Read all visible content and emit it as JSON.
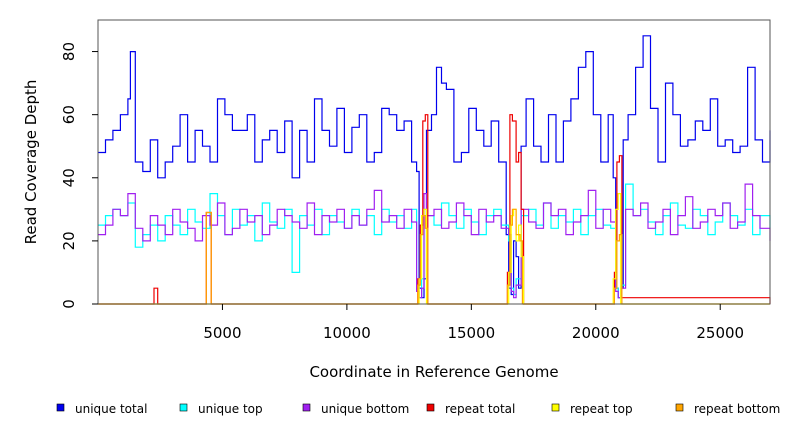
{
  "chart_data": {
    "type": "line",
    "title": "",
    "xlabel": "Coordinate in Reference Genome",
    "ylabel": "Read Coverage Depth",
    "xlim": [
      0,
      27000
    ],
    "ylim": [
      0,
      90
    ],
    "x_ticks": [
      5000,
      10000,
      15000,
      20000,
      25000
    ],
    "y_ticks": [
      0,
      20,
      40,
      60,
      80
    ],
    "grid": false,
    "legend_position": "bottom",
    "series": [
      {
        "name": "unique total",
        "color": "#0000ee",
        "x": [
          0,
          300,
          600,
          900,
          1200,
          1300,
          1500,
          1800,
          2100,
          2400,
          2700,
          3000,
          3300,
          3600,
          3900,
          4200,
          4500,
          4800,
          5100,
          5400,
          5700,
          6000,
          6300,
          6600,
          6900,
          7200,
          7500,
          7800,
          8100,
          8400,
          8700,
          9000,
          9300,
          9600,
          9900,
          10200,
          10500,
          10800,
          11100,
          11400,
          11700,
          12000,
          12300,
          12600,
          12800,
          12900,
          13000,
          13100,
          13200,
          13400,
          13600,
          13800,
          14000,
          14300,
          14600,
          14900,
          15200,
          15500,
          15800,
          16100,
          16400,
          16500,
          16600,
          16700,
          16800,
          16900,
          17000,
          17200,
          17500,
          17800,
          18100,
          18400,
          18700,
          19000,
          19300,
          19600,
          19900,
          20200,
          20500,
          20700,
          20800,
          20900,
          21000,
          21100,
          21300,
          21600,
          21900,
          22200,
          22500,
          22800,
          23100,
          23400,
          23700,
          24000,
          24300,
          24600,
          24900,
          25200,
          25500,
          25800,
          26100,
          26400,
          26700,
          27000
        ],
        "values": [
          48,
          52,
          55,
          60,
          65,
          80,
          45,
          42,
          52,
          40,
          45,
          50,
          60,
          45,
          55,
          50,
          45,
          65,
          60,
          55,
          55,
          60,
          45,
          52,
          55,
          48,
          58,
          40,
          55,
          45,
          65,
          55,
          50,
          62,
          48,
          56,
          60,
          45,
          48,
          62,
          60,
          55,
          58,
          45,
          42,
          5,
          2,
          8,
          55,
          60,
          75,
          70,
          68,
          45,
          48,
          62,
          55,
          50,
          58,
          45,
          22,
          5,
          3,
          20,
          15,
          5,
          50,
          65,
          50,
          45,
          60,
          45,
          58,
          65,
          75,
          80,
          60,
          45,
          60,
          40,
          5,
          2,
          5,
          52,
          60,
          75,
          85,
          62,
          45,
          70,
          60,
          50,
          52,
          58,
          55,
          65,
          50,
          52,
          48,
          50,
          75,
          52,
          45,
          55
        ]
      },
      {
        "name": "unique top",
        "color": "#00ffff",
        "x": [
          0,
          300,
          600,
          900,
          1200,
          1500,
          1800,
          2100,
          2400,
          2700,
          3000,
          3300,
          3600,
          3900,
          4200,
          4500,
          4800,
          5100,
          5400,
          5700,
          6000,
          6300,
          6600,
          6900,
          7200,
          7500,
          7800,
          8100,
          8400,
          8700,
          9000,
          9300,
          9600,
          9900,
          10200,
          10500,
          10800,
          11100,
          11400,
          11700,
          12000,
          12300,
          12600,
          12800,
          12900,
          13000,
          13100,
          13200,
          13500,
          13800,
          14100,
          14400,
          14700,
          15000,
          15300,
          15600,
          15900,
          16200,
          16500,
          16600,
          16700,
          16800,
          17000,
          17300,
          17600,
          17900,
          18200,
          18500,
          18800,
          19100,
          19400,
          19700,
          20000,
          20300,
          20600,
          20800,
          20900,
          21000,
          21200,
          21500,
          21800,
          22100,
          22400,
          22700,
          23000,
          23300,
          23600,
          23900,
          24200,
          24500,
          24800,
          25100,
          25400,
          25700,
          26000,
          26300,
          26600,
          27000
        ],
        "values": [
          25,
          28,
          30,
          28,
          32,
          18,
          22,
          25,
          20,
          28,
          25,
          22,
          30,
          26,
          24,
          35,
          28,
          22,
          30,
          25,
          28,
          20,
          32,
          26,
          24,
          30,
          10,
          28,
          25,
          30,
          22,
          28,
          26,
          24,
          30,
          25,
          28,
          22,
          30,
          26,
          28,
          24,
          30,
          5,
          2,
          8,
          30,
          28,
          25,
          32,
          28,
          24,
          30,
          26,
          22,
          28,
          30,
          25,
          20,
          5,
          3,
          8,
          28,
          30,
          25,
          32,
          24,
          28,
          26,
          30,
          22,
          28,
          30,
          25,
          24,
          5,
          2,
          6,
          38,
          28,
          30,
          26,
          22,
          28,
          32,
          25,
          24,
          30,
          28,
          22,
          26,
          32,
          28,
          25,
          30,
          22,
          28,
          24
        ]
      },
      {
        "name": "unique bottom",
        "color": "#a020f0",
        "x": [
          0,
          300,
          600,
          900,
          1200,
          1500,
          1800,
          2100,
          2400,
          2700,
          3000,
          3300,
          3600,
          3900,
          4200,
          4500,
          4800,
          5100,
          5400,
          5700,
          6000,
          6300,
          6600,
          6900,
          7200,
          7500,
          7800,
          8100,
          8400,
          8700,
          9000,
          9300,
          9600,
          9900,
          10200,
          10500,
          10800,
          11100,
          11400,
          11700,
          12000,
          12300,
          12600,
          12800,
          12900,
          13000,
          13100,
          13200,
          13500,
          13800,
          14100,
          14400,
          14700,
          15000,
          15300,
          15600,
          15900,
          16200,
          16500,
          16600,
          16700,
          16800,
          17000,
          17300,
          17600,
          17900,
          18200,
          18500,
          18800,
          19100,
          19400,
          19700,
          20000,
          20300,
          20600,
          20800,
          20900,
          21000,
          21200,
          21500,
          21800,
          22100,
          22400,
          22700,
          23000,
          23300,
          23600,
          23900,
          24200,
          24500,
          24800,
          25100,
          25400,
          25700,
          26000,
          26300,
          26600,
          27000
        ],
        "values": [
          22,
          25,
          30,
          28,
          35,
          24,
          20,
          28,
          25,
          22,
          30,
          26,
          24,
          20,
          28,
          25,
          32,
          22,
          24,
          30,
          26,
          28,
          22,
          25,
          30,
          28,
          26,
          24,
          32,
          22,
          28,
          26,
          30,
          24,
          28,
          25,
          30,
          36,
          26,
          28,
          24,
          30,
          26,
          4,
          2,
          5,
          35,
          28,
          30,
          24,
          26,
          32,
          28,
          22,
          30,
          26,
          28,
          24,
          22,
          4,
          2,
          6,
          30,
          26,
          24,
          32,
          28,
          30,
          22,
          26,
          28,
          36,
          24,
          30,
          26,
          4,
          2,
          5,
          30,
          28,
          32,
          24,
          26,
          30,
          22,
          28,
          34,
          24,
          26,
          30,
          28,
          32,
          24,
          26,
          38,
          28,
          24,
          20
        ]
      },
      {
        "name": "repeat total",
        "color": "#ee0000",
        "x": [
          0,
          2200,
          2250,
          2350,
          2400,
          4300,
          4350,
          4500,
          4550,
          12700,
          12850,
          12950,
          13050,
          13150,
          13250,
          16300,
          16450,
          16550,
          16650,
          16800,
          16900,
          17000,
          17100,
          20600,
          20750,
          20850,
          20950,
          21050,
          27000
        ],
        "values": [
          0,
          0,
          5,
          5,
          0,
          0,
          29,
          29,
          0,
          0,
          8,
          25,
          58,
          60,
          0,
          0,
          10,
          60,
          58,
          45,
          48,
          30,
          0,
          0,
          10,
          45,
          47,
          2,
          0
        ]
      },
      {
        "name": "repeat top",
        "color": "#ffff00",
        "x": [
          0,
          12800,
          12900,
          13000,
          13100,
          13200,
          16400,
          16500,
          16600,
          16700,
          16800,
          16900,
          17000,
          17100,
          20600,
          20700,
          20800,
          20900,
          21000,
          27000
        ],
        "values": [
          0,
          0,
          8,
          28,
          30,
          0,
          0,
          10,
          28,
          30,
          20,
          25,
          15,
          0,
          0,
          8,
          30,
          35,
          0,
          0
        ]
      },
      {
        "name": "repeat bottom",
        "color": "#ffa500",
        "x": [
          0,
          1200,
          1300,
          4300,
          4350,
          4500,
          4550,
          12700,
          12850,
          12950,
          13050,
          13150,
          13250,
          16300,
          16450,
          16550,
          16650,
          16800,
          16950,
          17050,
          20600,
          20750,
          20850,
          20950,
          21050,
          27000
        ],
        "values": [
          0,
          0,
          0,
          0,
          29,
          29,
          0,
          0,
          6,
          22,
          28,
          24,
          0,
          0,
          6,
          25,
          30,
          22,
          20,
          0,
          0,
          5,
          20,
          22,
          0,
          0
        ]
      }
    ],
    "legend": [
      {
        "label": "unique total",
        "color": "#0000ee"
      },
      {
        "label": "unique top",
        "color": "#00ffff"
      },
      {
        "label": "unique bottom",
        "color": "#a020f0"
      },
      {
        "label": "repeat total",
        "color": "#ee0000"
      },
      {
        "label": "repeat top",
        "color": "#ffff00"
      },
      {
        "label": "repeat bottom",
        "color": "#ffa500"
      }
    ]
  }
}
